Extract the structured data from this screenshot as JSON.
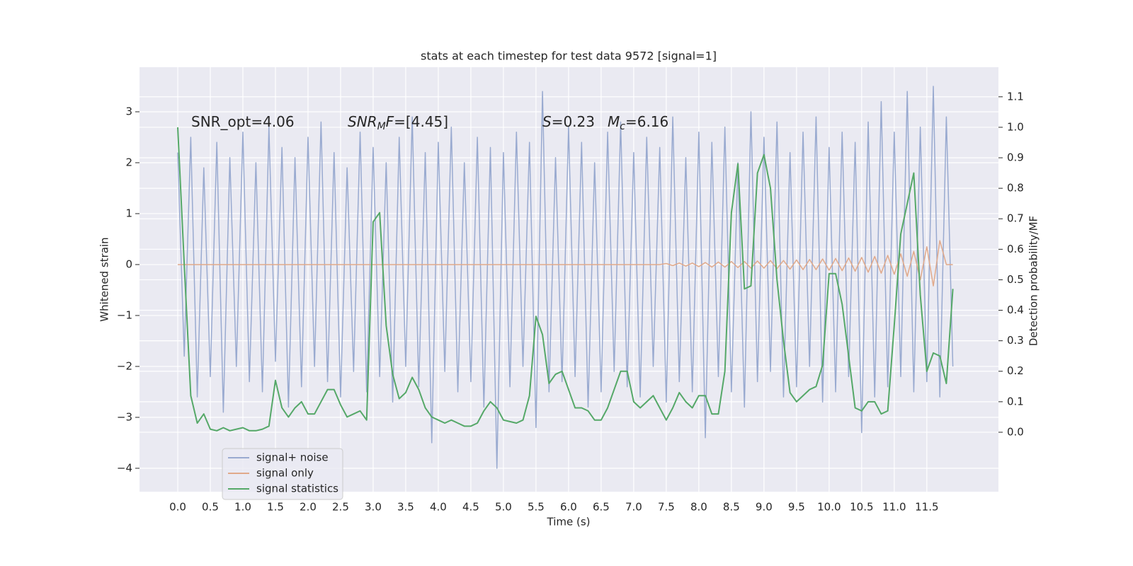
{
  "chart_data": {
    "type": "line",
    "title": "stats at each timestep for test data 9572 [signal=1]",
    "xlabel": "Time (s)",
    "ylabel": "Whitened strain",
    "y2label": "Detection probability/MF",
    "grid": true,
    "legend": "lower left",
    "xlim": [
      -0.587,
      12.6
    ],
    "ylim": [
      -4.46,
      3.875
    ],
    "y2lim": [
      -0.195,
      1.197
    ],
    "xticks": [
      {
        "value": 0,
        "label": "0.0"
      },
      {
        "value": 0.5,
        "label": "0.5"
      },
      {
        "value": 1,
        "label": "1.0"
      },
      {
        "value": 1.5,
        "label": "1.5"
      },
      {
        "value": 2,
        "label": "2.0"
      },
      {
        "value": 2.5,
        "label": "2.5"
      },
      {
        "value": 3,
        "label": "3.0"
      },
      {
        "value": 3.5,
        "label": "3.5"
      },
      {
        "value": 4,
        "label": "4.0"
      },
      {
        "value": 4.5,
        "label": "4.5"
      },
      {
        "value": 5,
        "label": "5.0"
      },
      {
        "value": 5.5,
        "label": "5.5"
      },
      {
        "value": 6,
        "label": "6.0"
      },
      {
        "value": 6.5,
        "label": "6.5"
      },
      {
        "value": 7,
        "label": "7.0"
      },
      {
        "value": 7.5,
        "label": "7.5"
      },
      {
        "value": 8,
        "label": "8.0"
      },
      {
        "value": 8.5,
        "label": "8.5"
      },
      {
        "value": 9,
        "label": "9.0"
      },
      {
        "value": 9.5,
        "label": "9.5"
      },
      {
        "value": 10,
        "label": "10.0"
      },
      {
        "value": 10.5,
        "label": "10.5"
      },
      {
        "value": 11,
        "label": "11.0"
      },
      {
        "value": 11.5,
        "label": "11.5"
      }
    ],
    "yticks": [
      {
        "value": -4,
        "label": "−4"
      },
      {
        "value": -3,
        "label": "−3"
      },
      {
        "value": -2,
        "label": "−2"
      },
      {
        "value": -1,
        "label": "−1"
      },
      0,
      1,
      2,
      3
    ],
    "y2ticks": [
      {
        "value": 0,
        "label": "0.0"
      },
      {
        "value": 0.1,
        "label": "0.1"
      },
      {
        "value": 0.2,
        "label": "0.2"
      },
      {
        "value": 0.3,
        "label": "0.3"
      },
      {
        "value": 0.4,
        "label": "0.4"
      },
      {
        "value": 0.5,
        "label": "0.5"
      },
      {
        "value": 0.6,
        "label": "0.6"
      },
      {
        "value": 0.7,
        "label": "0.7"
      },
      {
        "value": 0.8,
        "label": "0.8"
      },
      {
        "value": 0.9,
        "label": "0.9"
      },
      {
        "value": 1,
        "label": "1.0"
      },
      {
        "value": 1.1,
        "label": "1.1"
      }
    ],
    "annotations": [
      [
        {
          "text": "SNR_opt=4.06"
        }
      ],
      [
        {
          "text": "SNR",
          "italic": true
        },
        {
          "text": "M",
          "italic": true,
          "sub": true
        },
        {
          "text": "F",
          "italic": true
        },
        {
          "text": "=[4.45]"
        }
      ],
      [
        {
          "text": "S",
          "italic": true
        },
        {
          "text": "=0.23"
        }
      ],
      [
        {
          "text": "M",
          "italic": true
        },
        {
          "text": "c",
          "italic": true,
          "sub": true
        },
        {
          "text": "=6.16"
        }
      ]
    ],
    "x": [
      0,
      0.1,
      0.2,
      0.3,
      0.4,
      0.5,
      0.6,
      0.7,
      0.8,
      0.9,
      1,
      1.1,
      1.2,
      1.3,
      1.4,
      1.5,
      1.6,
      1.7,
      1.8,
      1.9,
      2,
      2.1,
      2.2,
      2.3,
      2.4,
      2.5,
      2.6,
      2.7,
      2.8,
      2.9,
      3,
      3.1,
      3.2,
      3.3,
      3.4,
      3.5,
      3.6,
      3.7,
      3.8,
      3.9,
      4,
      4.1,
      4.2,
      4.3,
      4.4,
      4.5,
      4.6,
      4.7,
      4.8,
      4.9,
      5,
      5.1,
      5.2,
      5.3,
      5.4,
      5.5,
      5.6,
      5.7,
      5.8,
      5.9,
      6,
      6.1,
      6.2,
      6.3,
      6.4,
      6.5,
      6.6,
      6.7,
      6.8,
      6.9,
      7,
      7.1,
      7.2,
      7.3,
      7.4,
      7.5,
      7.6,
      7.7,
      7.8,
      7.9,
      8,
      8.1,
      8.2,
      8.3,
      8.4,
      8.5,
      8.6,
      8.7,
      8.8,
      8.9,
      9,
      9.1,
      9.2,
      9.3,
      9.4,
      9.5,
      9.6,
      9.7,
      9.8,
      9.9,
      10,
      10.1,
      10.2,
      10.3,
      10.4,
      10.5,
      10.6,
      10.7,
      10.8,
      10.9,
      11,
      11.1,
      11.2,
      11.3,
      11.4,
      11.5,
      11.6,
      11.7,
      11.8,
      11.9
    ],
    "series": [
      {
        "name": "signal+ noise",
        "color": "#99aad0",
        "values": [
          2.2,
          -1.8,
          2.5,
          -2.6,
          1.9,
          -2.2,
          2.4,
          -2.9,
          2.1,
          -2.0,
          2.6,
          -2.3,
          2.0,
          -2.5,
          2.7,
          -1.9,
          2.3,
          -2.8,
          2.1,
          -2.4,
          2.5,
          -2.0,
          2.8,
          -2.3,
          2.2,
          -2.6,
          1.9,
          -2.1,
          2.6,
          -2.5,
          2.3,
          -2.2,
          2.0,
          -2.7,
          2.5,
          -2.0,
          2.9,
          -2.4,
          2.2,
          -3.5,
          2.4,
          -2.1,
          2.7,
          -2.5,
          2.0,
          -2.3,
          2.5,
          -2.8,
          2.3,
          -4.0,
          2.2,
          -2.4,
          2.6,
          -2.0,
          2.4,
          -3.2,
          3.4,
          -2.5,
          2.1,
          -2.3,
          2.7,
          -2.2,
          2.4,
          -2.8,
          2.0,
          -2.5,
          2.6,
          -2.1,
          2.8,
          -2.4,
          2.2,
          -2.6,
          2.5,
          -2.0,
          2.3,
          -2.7,
          2.9,
          -2.3,
          2.1,
          -2.5,
          2.6,
          -3.4,
          2.4,
          -2.2,
          2.7,
          -2.5,
          2.0,
          -2.8,
          3.0,
          -2.3,
          2.5,
          -2.1,
          2.8,
          -2.6,
          2.2,
          -2.4,
          2.6,
          -2.0,
          2.9,
          -2.7,
          2.3,
          -2.5,
          2.6,
          -2.2,
          2.4,
          -3.3,
          2.8,
          -2.6,
          3.2,
          -2.4,
          2.6,
          -2.2,
          3.4,
          -2.5,
          2.7,
          -2.3,
          3.5,
          -2.6,
          2.9,
          -2.0
        ]
      },
      {
        "name": "signal only",
        "color": "#e1a98a",
        "values": [
          0,
          0,
          0,
          0,
          0,
          0,
          0,
          0,
          0,
          0,
          0,
          0,
          0,
          0,
          0,
          0,
          0,
          0,
          0,
          0,
          0,
          0,
          0,
          0,
          0,
          0,
          0,
          0,
          0,
          0,
          0,
          0,
          0,
          0,
          0,
          0,
          0,
          0,
          0,
          0,
          0,
          0,
          0,
          0,
          0,
          0,
          0,
          0,
          0,
          0,
          0,
          0,
          0,
          0,
          0,
          0,
          0,
          0,
          0,
          0,
          0,
          0,
          0,
          0,
          0,
          0,
          0,
          0,
          0,
          0,
          0,
          0,
          0,
          0,
          0,
          0.02,
          -0.02,
          0.03,
          -0.03,
          0.03,
          -0.04,
          0.04,
          -0.05,
          0.05,
          -0.05,
          0.06,
          -0.06,
          0.06,
          -0.07,
          0.07,
          -0.07,
          0.08,
          -0.08,
          0.08,
          -0.09,
          0.09,
          -0.1,
          0.1,
          -0.1,
          0.11,
          -0.11,
          0.12,
          -0.12,
          0.13,
          -0.13,
          0.14,
          -0.15,
          0.16,
          -0.17,
          0.18,
          -0.19,
          0.21,
          -0.23,
          0.26,
          -0.3,
          0.35,
          -0.42,
          0.47,
          0,
          0
        ]
      },
      {
        "name": "signal statistics",
        "color": "#55a868",
        "axis": "y2",
        "values": [
          1.0,
          0.55,
          0.12,
          0.03,
          0.06,
          0.01,
          0.005,
          0.015,
          0.005,
          0.01,
          0.015,
          0.005,
          0.005,
          0.01,
          0.02,
          0.17,
          0.08,
          0.05,
          0.08,
          0.1,
          0.06,
          0.06,
          0.1,
          0.14,
          0.14,
          0.09,
          0.05,
          0.06,
          0.07,
          0.04,
          0.69,
          0.72,
          0.35,
          0.19,
          0.11,
          0.13,
          0.18,
          0.14,
          0.08,
          0.05,
          0.04,
          0.03,
          0.04,
          0.03,
          0.02,
          0.02,
          0.03,
          0.07,
          0.1,
          0.08,
          0.04,
          0.035,
          0.03,
          0.04,
          0.12,
          0.38,
          0.32,
          0.16,
          0.19,
          0.2,
          0.14,
          0.08,
          0.08,
          0.07,
          0.04,
          0.04,
          0.08,
          0.14,
          0.2,
          0.2,
          0.1,
          0.08,
          0.1,
          0.12,
          0.08,
          0.04,
          0.08,
          0.13,
          0.1,
          0.08,
          0.12,
          0.12,
          0.06,
          0.06,
          0.2,
          0.72,
          0.88,
          0.47,
          0.48,
          0.85,
          0.91,
          0.8,
          0.5,
          0.3,
          0.13,
          0.1,
          0.12,
          0.14,
          0.15,
          0.22,
          0.52,
          0.52,
          0.42,
          0.25,
          0.08,
          0.07,
          0.1,
          0.1,
          0.06,
          0.07,
          0.35,
          0.65,
          0.75,
          0.85,
          0.45,
          0.2,
          0.26,
          0.25,
          0.16,
          0.47
        ]
      }
    ]
  }
}
